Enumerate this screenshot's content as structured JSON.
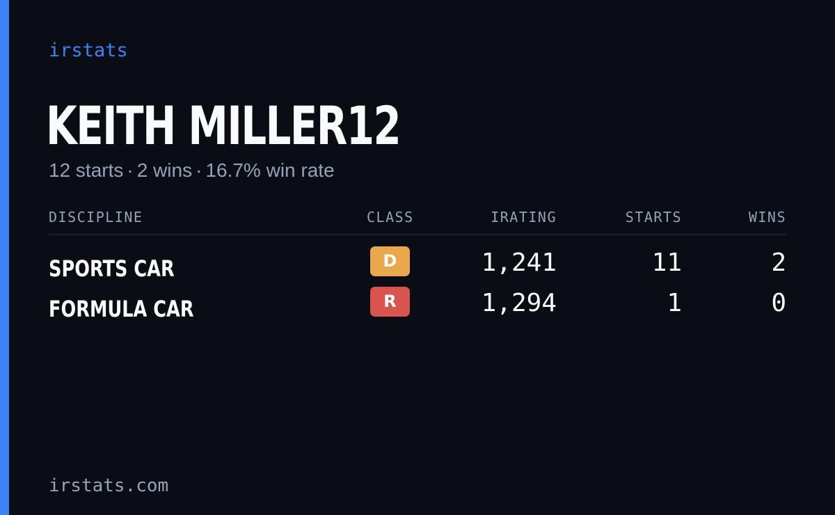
{
  "brand": "irstats",
  "player": {
    "name": "KEITH MILLER12",
    "starts_text": "12 starts",
    "wins_text": "2 wins",
    "win_rate_text": "16.7% win rate",
    "separator": "·"
  },
  "table": {
    "headers": {
      "discipline": "DISCIPLINE",
      "class": "CLASS",
      "irating": "IRATING",
      "starts": "STARTS",
      "wins": "WINS"
    },
    "rows": [
      {
        "discipline": "SPORTS CAR",
        "class": "D",
        "class_color": "#e9a84c",
        "irating": "1,241",
        "starts": "11",
        "wins": "2"
      },
      {
        "discipline": "FORMULA CAR",
        "class": "R",
        "class_color": "#d9534f",
        "irating": "1,294",
        "starts": "1",
        "wins": "0"
      }
    ]
  },
  "footer": "irstats.com",
  "colors": {
    "accent": "#3b82f6",
    "background": "#0a0d14",
    "muted_text": "#94a3b8",
    "primary_text": "#f8fafc"
  }
}
